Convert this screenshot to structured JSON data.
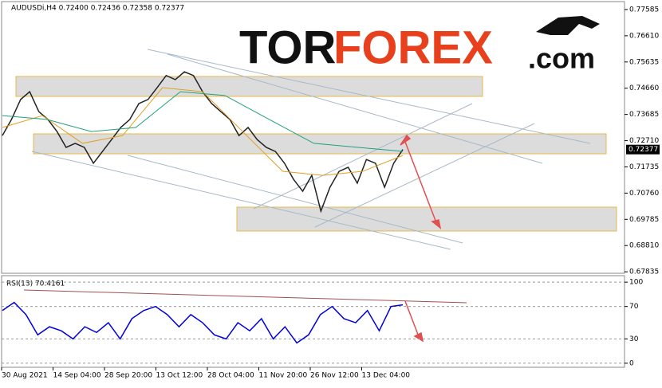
{
  "chart_data": [
    {
      "type": "line",
      "title": "AUDUSDi,H4 0.72400 0.72436 0.72358 0.72377",
      "last_label": "0.72377",
      "ylim": [
        0.6778,
        0.7788
      ],
      "yticks": [
        0.77585,
        {
          "value": 0.7661,
          "label": "0.76610"
        },
        0.75635,
        {
          "value": 0.7466,
          "label": "0.74660"
        },
        0.73685,
        {
          "value": 0.7271,
          "label": "0.72710"
        },
        0.71735,
        {
          "value": 0.7076,
          "label": "0.70760"
        },
        0.69785,
        {
          "value": 0.6881,
          "label": "0.68810"
        },
        0.67835
      ],
      "series": [
        {
          "color": "#222222",
          "values": [
            0.729,
            0.735,
            0.7424,
            0.7453,
            0.7379,
            0.735,
            0.7305,
            0.7246,
            0.7261,
            0.7246,
            0.7187,
            0.7231,
            0.7275,
            0.732,
            0.735,
            0.7409,
            0.7424,
            0.7468,
            0.7513,
            0.7498,
            0.7527,
            0.7513,
            0.7453,
            0.7409,
            0.7379,
            0.735,
            0.729,
            0.732,
            0.7275,
            0.7246,
            0.7231,
            0.7187,
            0.7127,
            0.7083,
            0.7142,
            0.7009,
            0.7098,
            0.7157,
            0.7172,
            0.7113,
            0.7201,
            0.7187,
            0.7098,
            0.7187,
            0.7238
          ]
        },
        {
          "color": "#e0a020",
          "values": [
            0.732,
            0.7364,
            0.7261,
            0.729,
            0.7468,
            0.7453,
            0.7305,
            0.7157,
            0.7142,
            0.7157,
            0.7216
          ]
        },
        {
          "color": "#20a080",
          "values": [
            0.7364,
            0.735,
            0.7305,
            0.732,
            0.7453,
            0.7439,
            0.735,
            0.7261,
            0.7246,
            0.7231
          ]
        }
      ],
      "xticks": [
        "30 Aug 2021",
        "14 Sep 04:00",
        "28 Sep 20:00",
        "13 Oct 12:00",
        "28 Oct 04:00",
        "11 Nov 20:00",
        "26 Nov 12:00",
        "13 Dec 04:00"
      ],
      "grid": false
    },
    {
      "type": "line",
      "title": "RSI(13) 70.4161",
      "ylim": [
        -5,
        108
      ],
      "yticks": [
        100,
        70,
        30,
        0
      ],
      "grid": true,
      "series": [
        {
          "color": "#0000dd",
          "values": [
            65,
            75,
            60,
            35,
            45,
            40,
            30,
            45,
            38,
            50,
            30,
            55,
            65,
            70,
            60,
            45,
            60,
            50,
            35,
            30,
            50,
            40,
            55,
            30,
            45,
            25,
            35,
            60,
            70,
            55,
            50,
            65,
            40,
            70,
            72
          ]
        }
      ]
    }
  ],
  "logo": {
    "brand": "TOR",
    "accent": "FOREX",
    "suffix": ".com"
  }
}
